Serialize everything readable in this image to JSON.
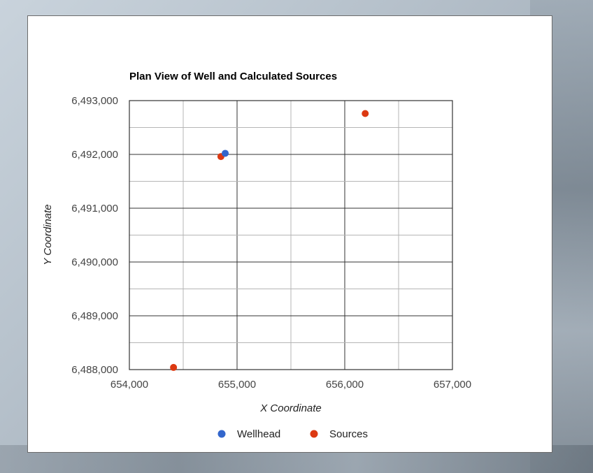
{
  "chart_data": {
    "type": "scatter",
    "title": "Plan View of Well and Calculated Sources",
    "xlabel": "X Coordinate",
    "ylabel": "Y Coordinate",
    "xlim": [
      654000,
      657000
    ],
    "ylim": [
      6488000,
      6493000
    ],
    "x_ticks": [
      "654,000",
      "655,000",
      "656,000",
      "657,000"
    ],
    "y_ticks": [
      "6,488,000",
      "6,489,000",
      "6,490,000",
      "6,491,000",
      "6,492,000",
      "6,493,000"
    ],
    "x_tick_values": [
      654000,
      655000,
      656000,
      657000
    ],
    "y_tick_values": [
      6488000,
      6489000,
      6490000,
      6491000,
      6492000,
      6493000
    ],
    "grid": true,
    "legend_position": "bottom",
    "series": [
      {
        "name": "Wellhead",
        "color": "#3366cc",
        "points": [
          [
            654890,
            6492020
          ]
        ]
      },
      {
        "name": "Sources",
        "color": "#dc3912",
        "points": [
          [
            654850,
            6491960
          ],
          [
            656190,
            6492760
          ],
          [
            654410,
            6488040
          ]
        ]
      }
    ]
  }
}
